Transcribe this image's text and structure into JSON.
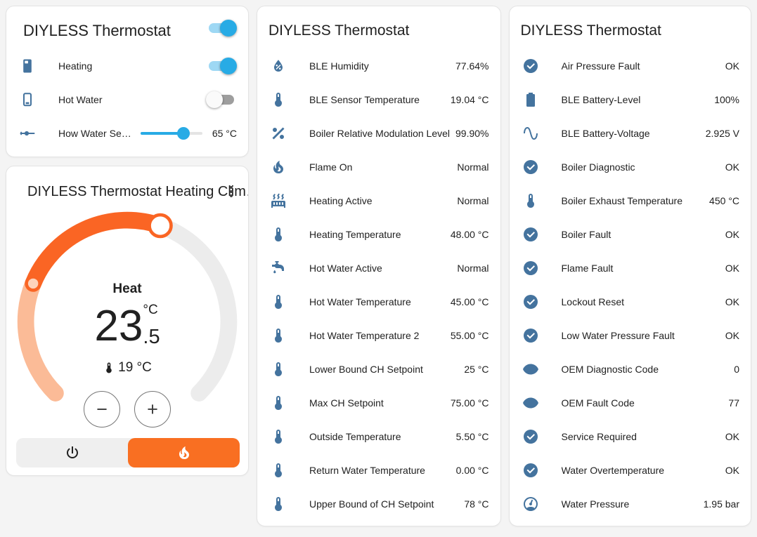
{
  "colors": {
    "accent_blue": "#28abe5",
    "toggle_track_on": "#9ed8f4",
    "icon_blue": "#44739e",
    "heat_orange": "#f96f22",
    "dial_orange": "#fa6524",
    "dial_salmon": "#fbbb97",
    "dial_gray": "#ececec",
    "card_bg": "#ffffff",
    "page_bg": "#f4f4f4"
  },
  "left_card": {
    "title": "DIYLESS Thermostat",
    "title_toggle_state": "on",
    "rows": [
      {
        "icon": "water-boiler",
        "label": "Heating",
        "type": "toggle",
        "state": "on"
      },
      {
        "icon": "water-boiler-off",
        "label": "Hot Water",
        "type": "toggle",
        "state": "off"
      },
      {
        "icon": "slider-horizontal",
        "label": "How Water Se…",
        "type": "slider",
        "value": "65 °C",
        "percent": 70
      }
    ]
  },
  "climate_card": {
    "title": "DIYLESS Thermostat Heating Clim…",
    "menu_icon": "dots-vertical",
    "mode_label": "Heat",
    "target_whole": "23",
    "target_decimal": ".5",
    "unit": "°C",
    "current_temperature": "19 °C",
    "minus_glyph": "−",
    "plus_glyph": "+",
    "mode_buttons": [
      {
        "icon": "power",
        "selected": false
      },
      {
        "icon": "fire",
        "selected": true
      }
    ]
  },
  "middle_card": {
    "title": "DIYLESS Thermostat",
    "rows": [
      {
        "icon": "water-percent",
        "label": "BLE Humidity",
        "value": "77.64%"
      },
      {
        "icon": "thermometer",
        "label": "BLE Sensor Temperature",
        "value": "19.04 °C"
      },
      {
        "icon": "percent",
        "label": "Boiler Relative Modulation Level",
        "value": "99.90%"
      },
      {
        "icon": "fire",
        "label": "Flame On",
        "value": "Normal"
      },
      {
        "icon": "radiator",
        "label": "Heating Active",
        "value": "Normal"
      },
      {
        "icon": "thermometer",
        "label": "Heating Temperature",
        "value": "48.00 °C"
      },
      {
        "icon": "faucet",
        "label": "Hot Water Active",
        "value": "Normal"
      },
      {
        "icon": "thermometer",
        "label": "Hot Water Temperature",
        "value": "45.00 °C"
      },
      {
        "icon": "thermometer",
        "label": "Hot Water Temperature 2",
        "value": "55.00 °C"
      },
      {
        "icon": "thermometer",
        "label": "Lower Bound CH Setpoint",
        "value": "25 °C"
      },
      {
        "icon": "thermometer",
        "label": "Max CH Setpoint",
        "value": "75.00 °C"
      },
      {
        "icon": "thermometer",
        "label": "Outside Temperature",
        "value": "5.50 °C"
      },
      {
        "icon": "thermometer",
        "label": "Return Water Temperature",
        "value": "0.00 °C"
      },
      {
        "icon": "thermometer",
        "label": "Upper Bound of CH Setpoint",
        "value": "78 °C"
      }
    ]
  },
  "right_card": {
    "title": "DIYLESS Thermostat",
    "rows": [
      {
        "icon": "check-circle",
        "label": "Air Pressure Fault",
        "value": "OK"
      },
      {
        "icon": "battery",
        "label": "BLE Battery-Level",
        "value": "100%"
      },
      {
        "icon": "sine-wave",
        "label": "BLE Battery-Voltage",
        "value": "2.925 V"
      },
      {
        "icon": "check-circle",
        "label": "Boiler Diagnostic",
        "value": "OK"
      },
      {
        "icon": "thermometer",
        "label": "Boiler Exhaust Temperature",
        "value": "450 °C"
      },
      {
        "icon": "check-circle",
        "label": "Boiler Fault",
        "value": "OK"
      },
      {
        "icon": "check-circle",
        "label": "Flame Fault",
        "value": "OK"
      },
      {
        "icon": "check-circle",
        "label": "Lockout Reset",
        "value": "OK"
      },
      {
        "icon": "check-circle",
        "label": "Low Water Pressure Fault",
        "value": "OK"
      },
      {
        "icon": "eye",
        "label": "OEM Diagnostic Code",
        "value": "0"
      },
      {
        "icon": "eye",
        "label": "OEM Fault Code",
        "value": "77"
      },
      {
        "icon": "check-circle",
        "label": "Service Required",
        "value": "OK"
      },
      {
        "icon": "check-circle",
        "label": "Water Overtemperature",
        "value": "OK"
      },
      {
        "icon": "gauge",
        "label": "Water Pressure",
        "value": "1.95 bar"
      }
    ]
  }
}
